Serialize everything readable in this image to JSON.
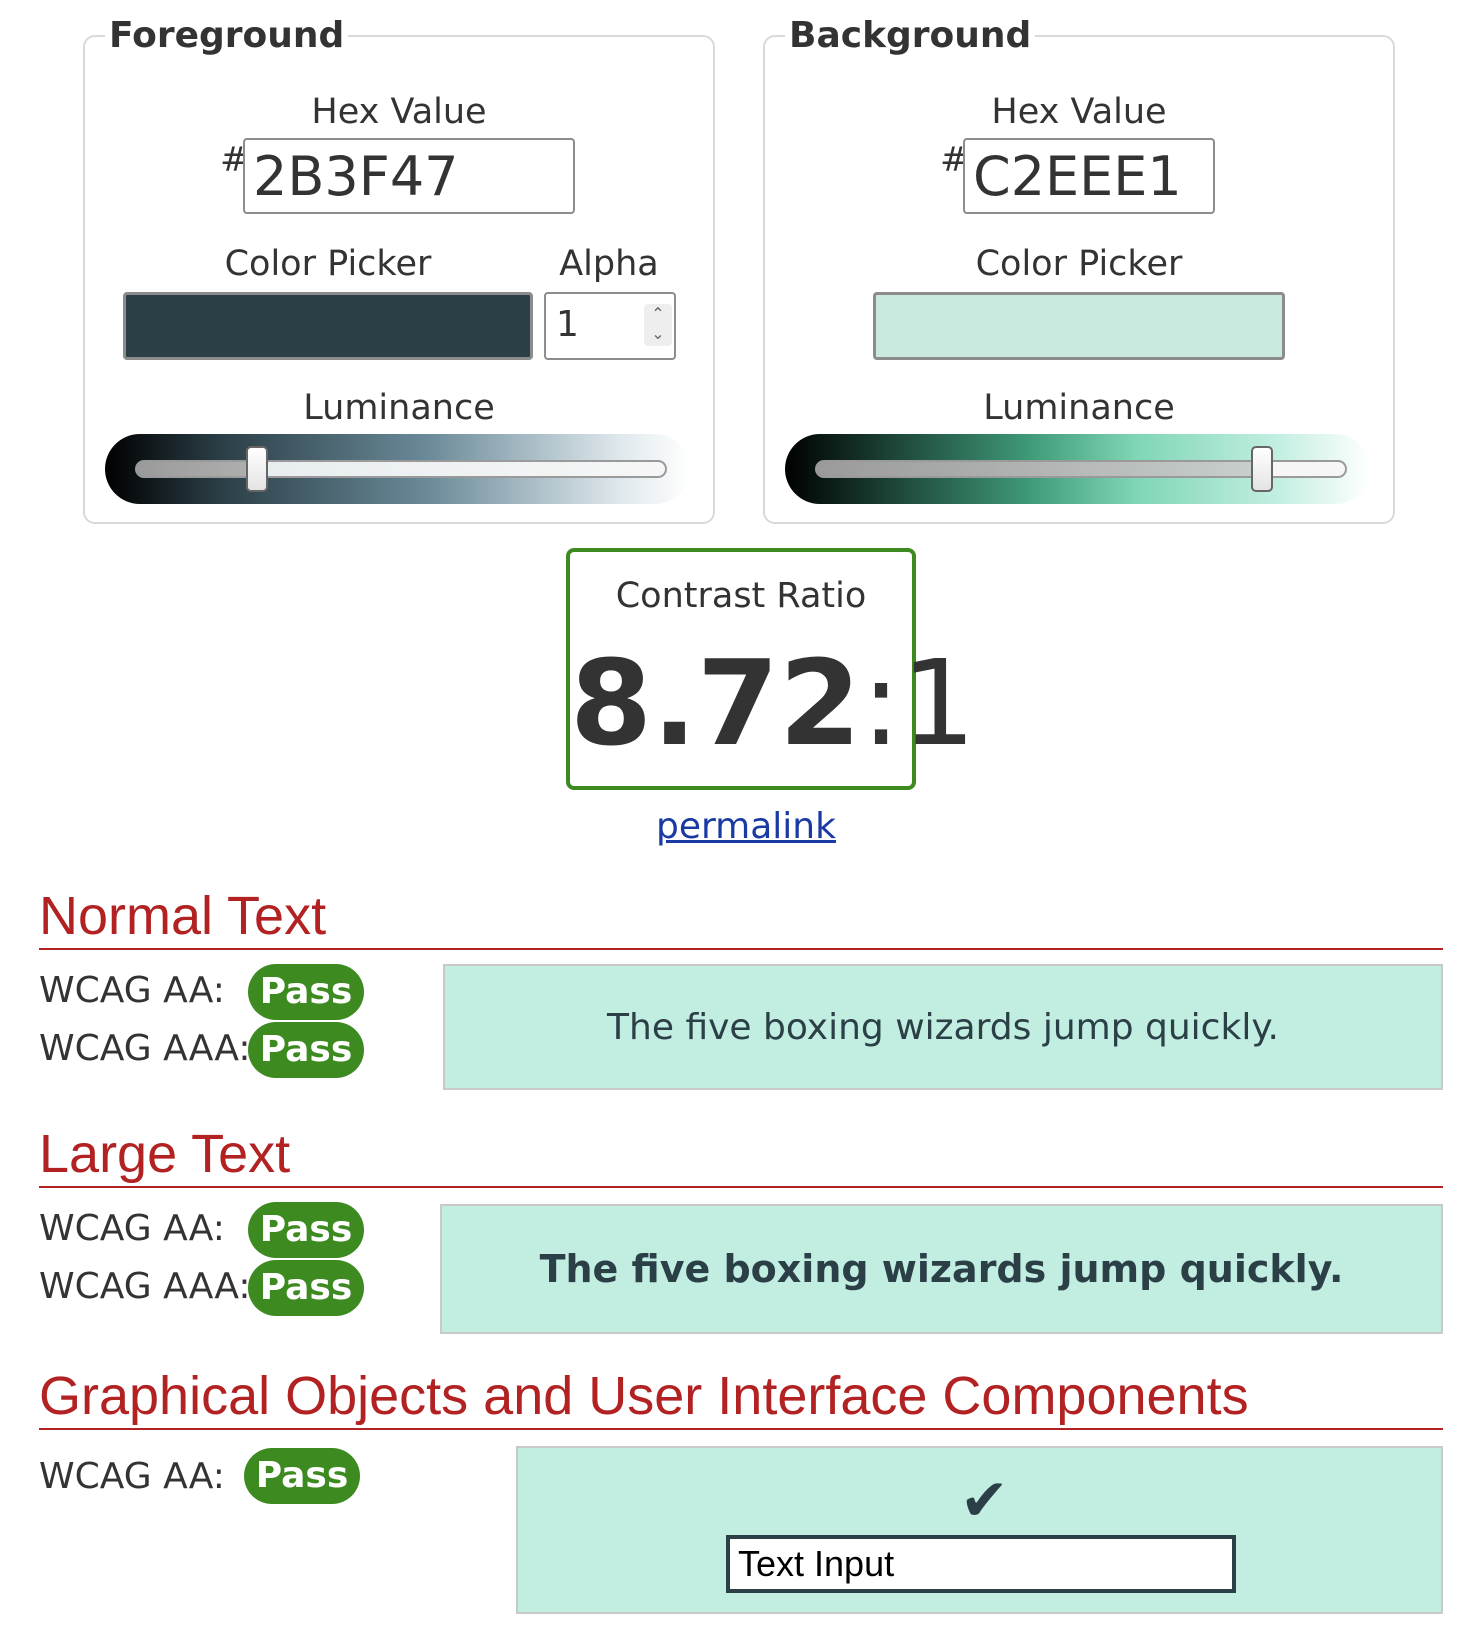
{
  "foreground": {
    "legend": "Foreground",
    "hex_label": "Hex Value",
    "hash": "#",
    "hex_value": "2B3F47",
    "picker_label": "Color Picker",
    "alpha_label": "Alpha",
    "alpha_value": "1",
    "luminance_label": "Luminance",
    "luminance_level": 0.23,
    "color": "#2b3f47"
  },
  "background": {
    "legend": "Background",
    "hex_label": "Hex Value",
    "hash": "#",
    "hex_value": "C2EEE1",
    "picker_label": "Color Picker",
    "luminance_label": "Luminance",
    "luminance_level": 0.84,
    "color": "#c2eee1"
  },
  "contrast": {
    "label": "Contrast Ratio",
    "ratio": "8.72",
    "suffix": ":1",
    "border_color": "#3d8a21"
  },
  "permalink": "permalink",
  "sections": {
    "normal": {
      "title": "Normal Text",
      "aa_label": "WCAG AA:",
      "aa_result": "Pass",
      "aaa_label": "WCAG AAA:",
      "aaa_result": "Pass",
      "sample": "The five boxing wizards jump quickly."
    },
    "large": {
      "title": "Large Text",
      "aa_label": "WCAG AA:",
      "aa_result": "Pass",
      "aaa_label": "WCAG AAA:",
      "aaa_result": "Pass",
      "sample": "The five boxing wizards jump quickly."
    },
    "graphical": {
      "title": "Graphical Objects and User Interface Components",
      "aa_label": "WCAG AA:",
      "aa_result": "Pass",
      "check_icon": "✔",
      "input_value": "Text Input"
    }
  },
  "colors": {
    "pass": "#3d8a21",
    "heading": "#b22222",
    "link": "#1a3aa3"
  }
}
